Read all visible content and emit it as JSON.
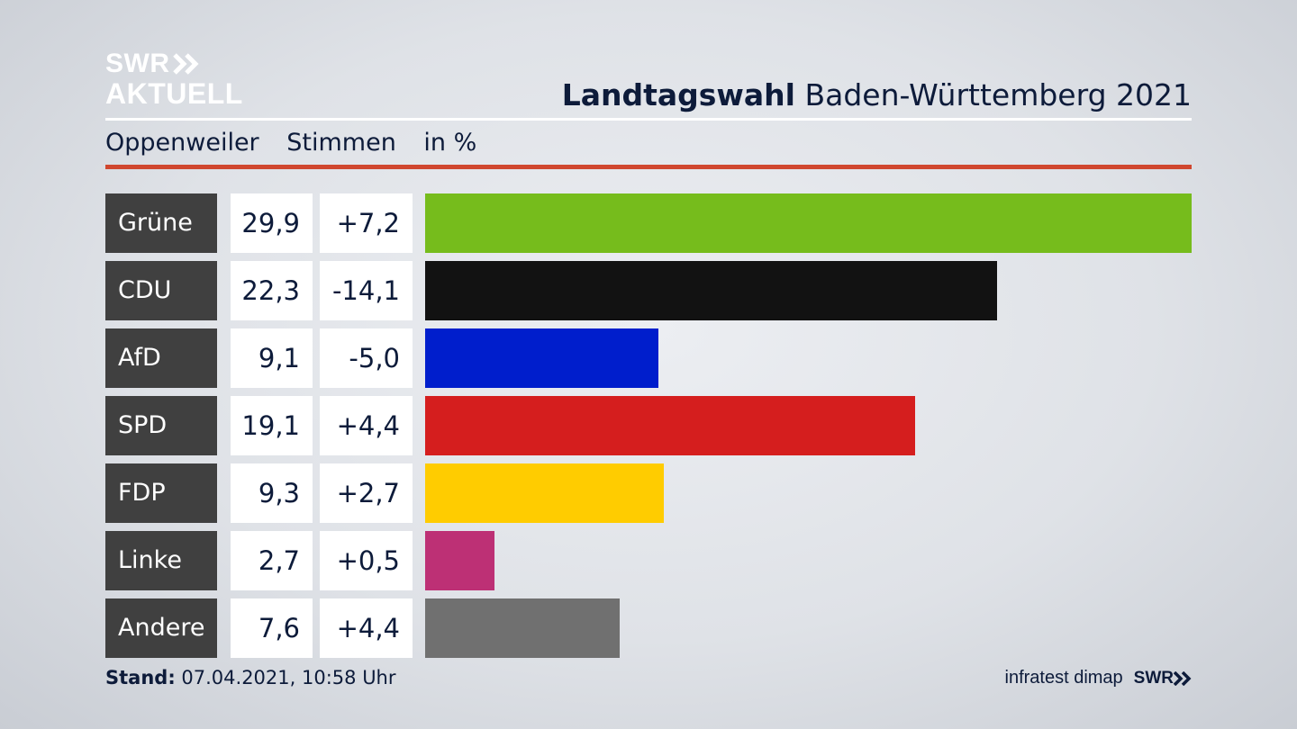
{
  "brand": {
    "line1": "SWR",
    "line2": "AKTUELL",
    "footer_logo": "SWR",
    "arrows_icon": "double-chevron-right-icon"
  },
  "header": {
    "title_bold": "Landtagswahl",
    "title_rest": "Baden-Württemberg 2021"
  },
  "subheader": {
    "location": "Oppenweiler",
    "measure": "Stimmen",
    "unit": "in %"
  },
  "footer": {
    "stand_label": "Stand:",
    "stand_value": "07.04.2021, 10:58 Uhr",
    "source": "infratest dimap"
  },
  "colors": {
    "accent_line": "#d0472f",
    "name_bg": "#404040"
  },
  "chart_data": {
    "type": "bar",
    "orientation": "horizontal",
    "title": "Landtagswahl Baden-Württemberg 2021",
    "subtitle": "Oppenweiler Stimmen in %",
    "categories": [
      "Grüne",
      "CDU",
      "AfD",
      "SPD",
      "FDP",
      "Linke",
      "Andere"
    ],
    "values": [
      29.9,
      22.3,
      9.1,
      19.1,
      9.3,
      2.7,
      7.6
    ],
    "value_labels": [
      "29,9",
      "22,3",
      "9,1",
      "19,1",
      "9,3",
      "2,7",
      "7,6"
    ],
    "diff_labels": [
      "+7,2",
      "-14,1",
      "-5,0",
      "+4,4",
      "+2,7",
      "+0,5",
      "+4,4"
    ],
    "colors": [
      "#76bc1c",
      "#121212",
      "#001ecc",
      "#d51e1e",
      "#ffcc00",
      "#bd3075",
      "#707070"
    ],
    "xlim": [
      0,
      29.9
    ],
    "grid": false,
    "legend": "none"
  }
}
